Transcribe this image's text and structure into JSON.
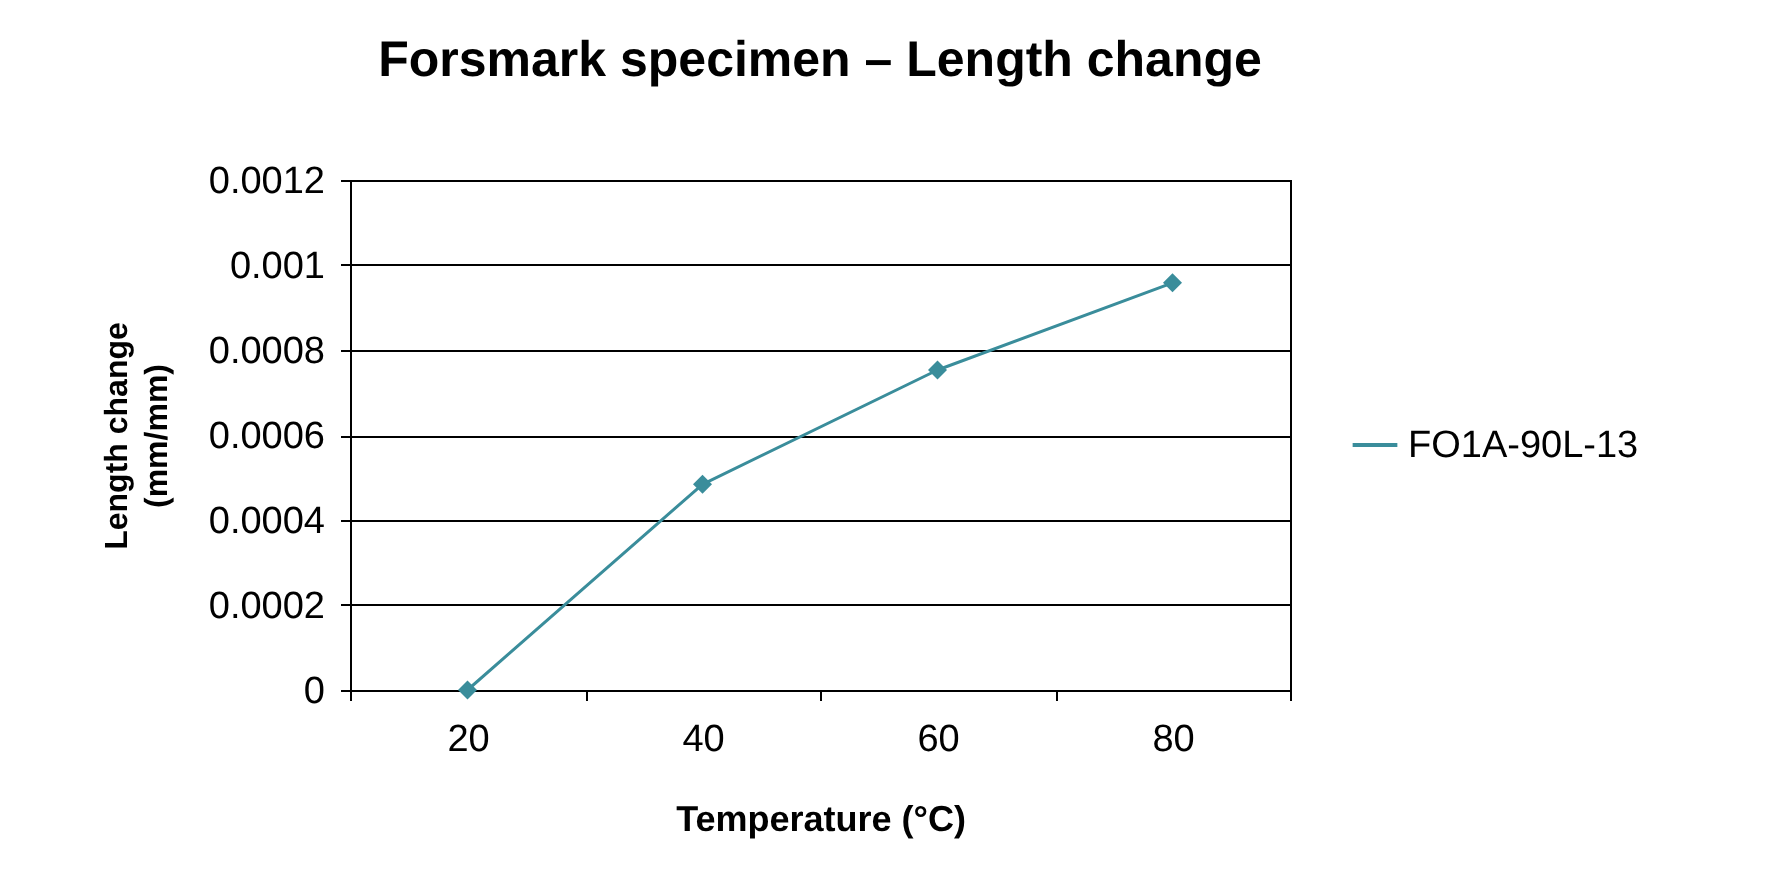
{
  "chart_data": {
    "type": "line",
    "title": "Forsmark specimen – Length change",
    "xlabel": "Temperature (°C)",
    "ylabel": "Length change\n(mm/mm)",
    "categories": [
      "20",
      "40",
      "60",
      "80"
    ],
    "series": [
      {
        "name": "FO1A-90L-13",
        "color": "#3a8d9b",
        "values": [
          0,
          0.000484,
          0.000753,
          0.000958
        ]
      }
    ],
    "ylim": [
      0,
      0.0012
    ],
    "yticks": [
      0,
      0.0002,
      0.0004,
      0.0006,
      0.0008,
      0.001,
      0.0012
    ],
    "grid": "y",
    "legend": "right",
    "marker": "diamond",
    "line_style": "solid"
  }
}
